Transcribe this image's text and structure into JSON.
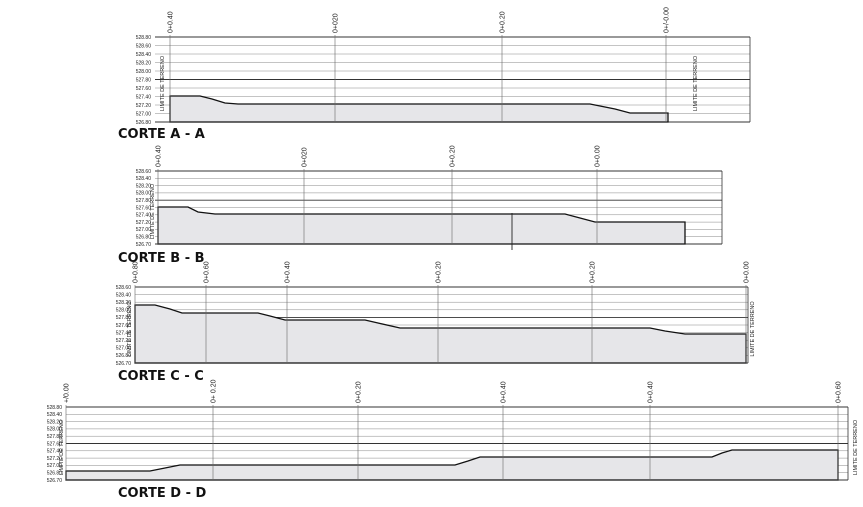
{
  "sections": [
    {
      "title": "CORTE A - A",
      "y_labels": [
        "528.80",
        "528.60",
        "528.40",
        "528.20",
        "528.00",
        "527.80",
        "527.60",
        "527.40",
        "527.20",
        "527.00",
        "526.80"
      ],
      "stations": [
        "0+0.40",
        "0+020",
        "0+0.20",
        "0+/-0.00"
      ],
      "limite_left": "LIMITE DE TERRENO",
      "limite_right": "LIMITE DE TERRENO"
    },
    {
      "title": "CORTE B - B",
      "y_labels": [
        "528.60",
        "528.40",
        "528.20",
        "528.00",
        "527.80",
        "527.60",
        "527.40",
        "527.20",
        "527.00",
        "526.80",
        "526.70"
      ],
      "stations": [
        "0+0.40",
        "0+020",
        "0+0.20",
        "0+0.00"
      ],
      "limite_left": "LIMITE DE TERRENO"
    },
    {
      "title": "CORTE C - C",
      "y_labels": [
        "528.60",
        "528.40",
        "528.20",
        "528.00",
        "527.80",
        "527.60",
        "527.40",
        "527.20",
        "527.00",
        "526.80",
        "526.70"
      ],
      "stations": [
        "0+0.80",
        "0+0.60",
        "0+0.40",
        "0+0.20",
        "0+0.20",
        "0+0.00"
      ],
      "limite_left": "LIMITE DE TERRENO",
      "limite_right": "LIMITE DE TERRENO"
    },
    {
      "title": "CORTE D - D",
      "y_labels": [
        "528.80",
        "528.40",
        "528.20",
        "528.00",
        "527.80",
        "527.60",
        "527.40",
        "527.20",
        "527.00",
        "526.80",
        "526.70"
      ],
      "stations": [
        "+/0.00",
        "0+ 0.20",
        "0+0.20",
        "0+0.40",
        "0+0.40",
        "0+0.60"
      ],
      "limite_left": "LIMITE DE TERRENO",
      "limite_right": "LIMITE DE TERRENO"
    }
  ]
}
